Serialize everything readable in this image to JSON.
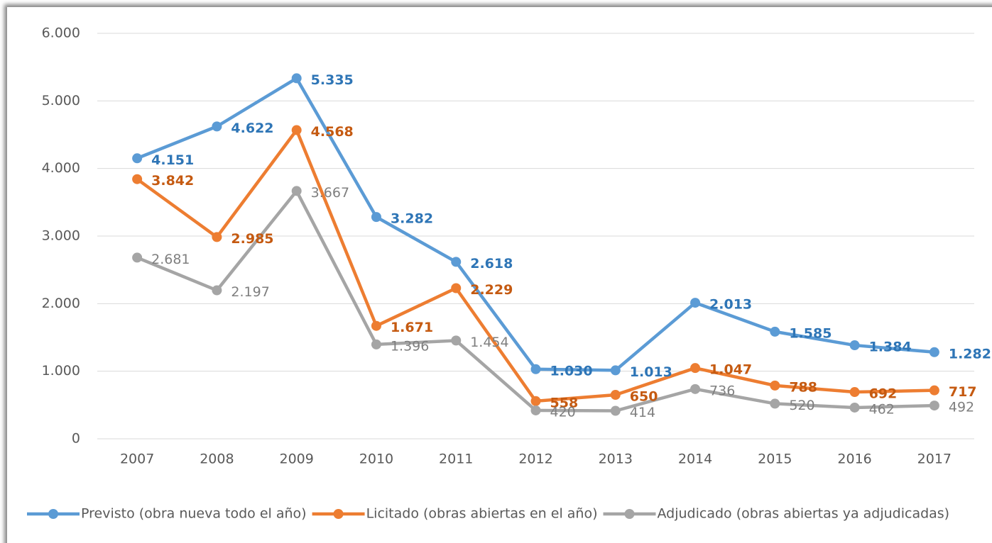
{
  "chart_data": {
    "type": "line",
    "categories": [
      "2007",
      "2008",
      "2009",
      "2010",
      "2011",
      "2012",
      "2013",
      "2014",
      "2015",
      "2016",
      "2017"
    ],
    "series": [
      {
        "name": "Previsto (obra nueva todo el año)",
        "color": "#5b9bd5",
        "label_color": "#2e75b6",
        "values": [
          4151,
          4622,
          5335,
          3282,
          2618,
          1030,
          1013,
          2013,
          1585,
          1384,
          1282
        ],
        "value_labels": [
          "4.151",
          "4.622",
          "5.335",
          "3.282",
          "2.618",
          "1.030",
          "1.013",
          "2.013",
          "1.585",
          "1.384",
          "1.282"
        ]
      },
      {
        "name": "Licitado (obras abiertas en el año)",
        "color": "#ed7d31",
        "label_color": "#c55a11",
        "values": [
          3842,
          2985,
          4568,
          1671,
          2229,
          558,
          650,
          1047,
          788,
          692,
          717
        ],
        "value_labels": [
          "3.842",
          "2.985",
          "4.568",
          "1.671",
          "2.229",
          "558",
          "650",
          "1.047",
          "788",
          "692",
          "717"
        ]
      },
      {
        "name": "Adjudicado (obras abiertas ya adjudicadas)",
        "color": "#a5a5a5",
        "label_color": "#7f7f7f",
        "values": [
          2681,
          2197,
          3667,
          1396,
          1454,
          420,
          414,
          736,
          520,
          462,
          492
        ],
        "value_labels": [
          "2.681",
          "2.197",
          "3.667",
          "1.396",
          "1.454",
          "420",
          "414",
          "736",
          "520",
          "462",
          "492"
        ]
      }
    ],
    "ylim": [
      0,
      6000
    ],
    "yticks": [
      0,
      {
        "value": 1000,
        "label": "1.000"
      },
      {
        "value": 2000,
        "label": "2.000"
      },
      {
        "value": 3000,
        "label": "3.000"
      },
      {
        "value": 4000,
        "label": "4.000"
      },
      {
        "value": 5000,
        "label": "5.000"
      },
      {
        "value": 6000,
        "label": "6.000"
      }
    ],
    "grid": true,
    "legend": "bottom"
  }
}
